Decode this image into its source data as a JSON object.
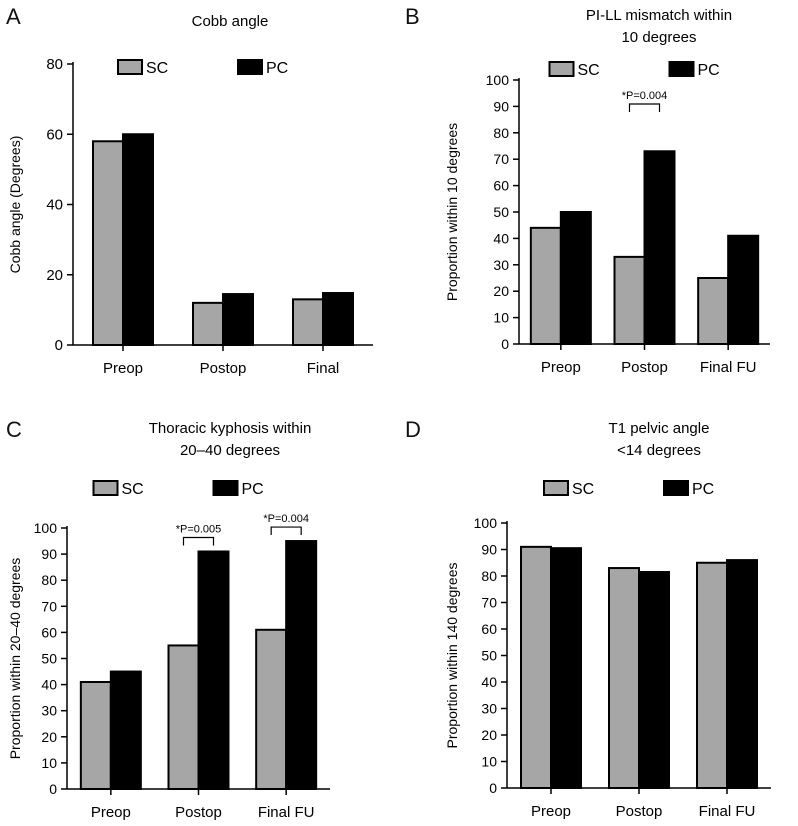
{
  "colors": {
    "sc": "#a6a6a6",
    "pc": "#000000",
    "axis": "#000000"
  },
  "chart_data": [
    {
      "panel_label": "A",
      "type": "bar",
      "title": [
        "Cobb angle"
      ],
      "ylabel": "Cobb angle (Degrees)",
      "xlabel": "",
      "categories": [
        "Preop",
        "Postop",
        "Final"
      ],
      "series": [
        {
          "name": "SC",
          "values": [
            58,
            12,
            13
          ]
        },
        {
          "name": "PC",
          "values": [
            60,
            14.5,
            14.8
          ]
        }
      ],
      "ylim": [
        0,
        80
      ],
      "yticks": [
        0,
        20,
        40,
        60,
        80
      ],
      "legend_position": "top",
      "annotations": []
    },
    {
      "panel_label": "B",
      "type": "bar",
      "title": [
        "PI-LL mismatch within",
        "10 degrees"
      ],
      "ylabel": "Proportion within 10 degrees",
      "xlabel": "",
      "categories": [
        "Preop",
        "Postop",
        "Final FU"
      ],
      "series": [
        {
          "name": "SC",
          "values": [
            44,
            33,
            25
          ]
        },
        {
          "name": "PC",
          "values": [
            50,
            73,
            41
          ]
        }
      ],
      "ylim": [
        0,
        100
      ],
      "yticks": [
        0,
        10,
        20,
        30,
        40,
        50,
        60,
        70,
        80,
        90,
        100
      ],
      "legend_position": "top",
      "annotations": [
        {
          "text": "*P=0.004",
          "category": 1
        }
      ]
    },
    {
      "panel_label": "C",
      "type": "bar",
      "title": [
        "Thoracic kyphosis within",
        "20–40 degrees"
      ],
      "ylabel": "Proportion within 20–40 degrees",
      "xlabel": "",
      "categories": [
        "Preop",
        "Postop",
        "Final FU"
      ],
      "series": [
        {
          "name": "SC",
          "values": [
            41,
            55,
            61
          ]
        },
        {
          "name": "PC",
          "values": [
            45,
            91,
            95
          ]
        }
      ],
      "ylim": [
        0,
        100
      ],
      "yticks": [
        0,
        10,
        20,
        30,
        40,
        50,
        60,
        70,
        80,
        90,
        100
      ],
      "legend_position": "top",
      "annotations": [
        {
          "text": "*P=0.005",
          "category": 1
        },
        {
          "text": "*P=0.004",
          "category": 2
        }
      ]
    },
    {
      "panel_label": "D",
      "type": "bar",
      "title": [
        "T1 pelvic angle",
        "<14 degrees"
      ],
      "ylabel": "Proportion within 140 degrees",
      "xlabel": "",
      "categories": [
        "Preop",
        "Postop",
        "Final FU"
      ],
      "series": [
        {
          "name": "SC",
          "values": [
            91,
            83,
            85
          ]
        },
        {
          "name": "PC",
          "values": [
            90.5,
            81.5,
            86
          ]
        }
      ],
      "ylim": [
        0,
        100
      ],
      "yticks": [
        0,
        10,
        20,
        30,
        40,
        50,
        60,
        70,
        80,
        90,
        100
      ],
      "legend_position": "top",
      "annotations": []
    }
  ]
}
